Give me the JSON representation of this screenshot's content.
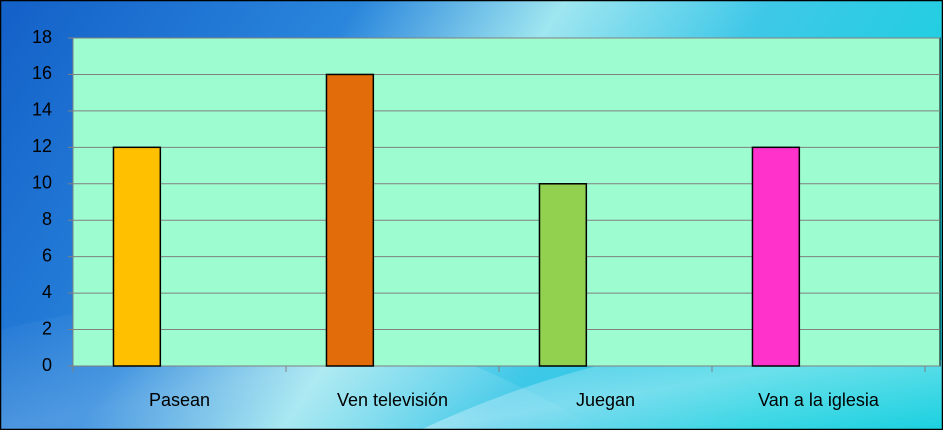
{
  "chart_data": {
    "type": "bar",
    "categories": [
      "Pasean",
      "Ven televisión",
      "Juegan",
      "Van a la iglesia"
    ],
    "values": [
      12,
      16,
      10,
      12
    ],
    "colors": [
      "#ffc000",
      "#e36c0a",
      "#92d050",
      "#ff33cc"
    ],
    "ylim": [
      0,
      18
    ],
    "yticks": [
      0,
      2,
      4,
      6,
      8,
      10,
      12,
      14,
      16,
      18
    ],
    "grid": true
  }
}
